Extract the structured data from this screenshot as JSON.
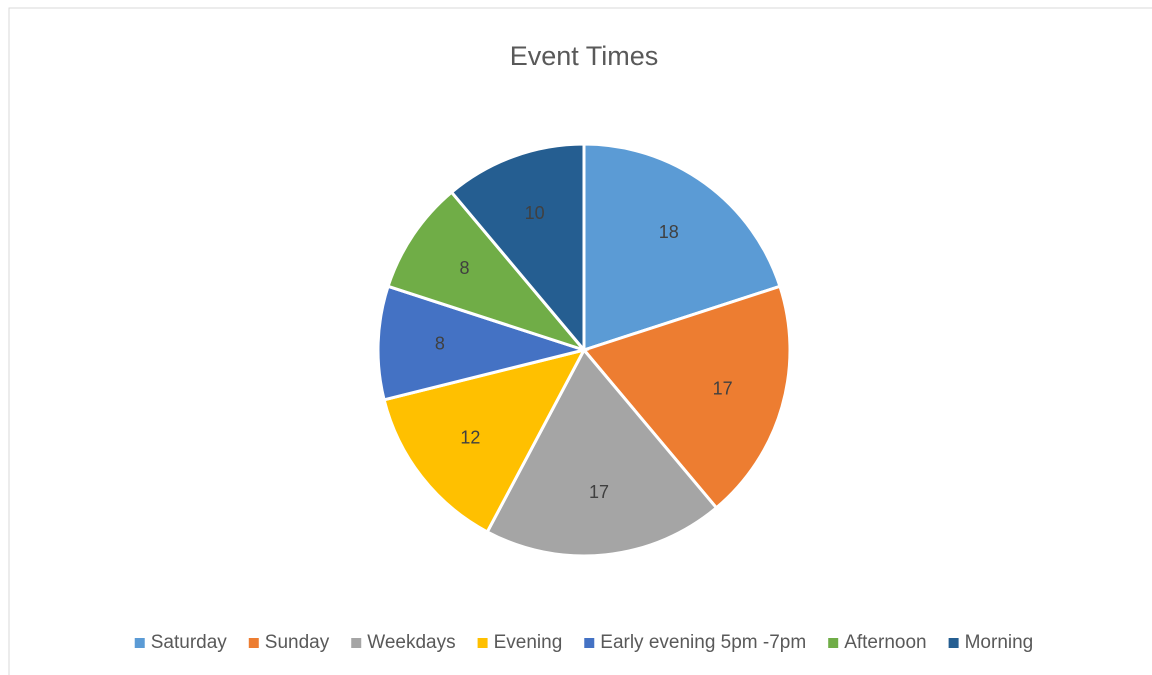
{
  "chart_data": {
    "type": "pie",
    "title": "Event Times",
    "categories": [
      "Saturday",
      "Sunday",
      "Weekdays",
      "Evening",
      "Early evening 5pm -7pm",
      "Afternoon",
      "Morning"
    ],
    "values": [
      18,
      17,
      17,
      12,
      8,
      8,
      10
    ],
    "colors": [
      "#5b9bd5",
      "#ed7d31",
      "#a5a5a5",
      "#ffc000",
      "#4472c4",
      "#70ad47",
      "#255e91"
    ],
    "legend": "bottom"
  }
}
